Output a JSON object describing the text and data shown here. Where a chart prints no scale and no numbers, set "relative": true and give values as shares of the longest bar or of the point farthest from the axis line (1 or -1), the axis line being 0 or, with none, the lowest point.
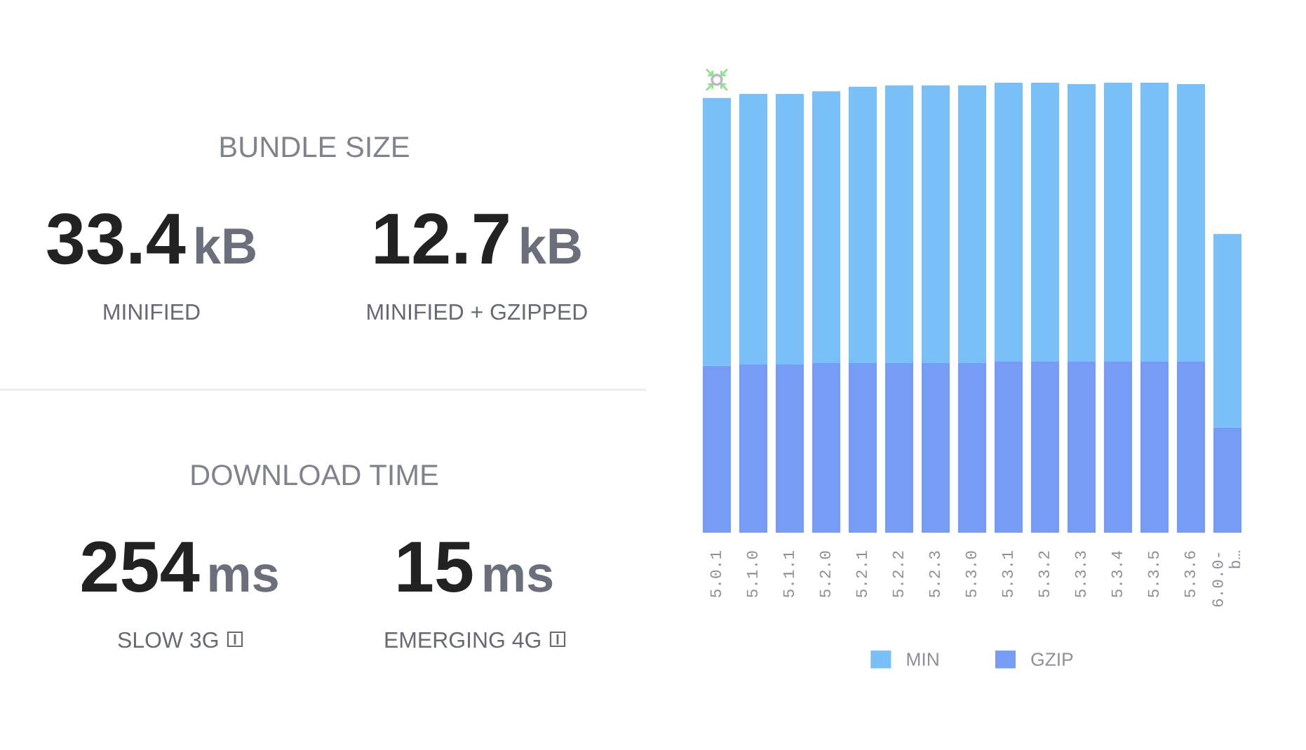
{
  "chart_data": [
    {
      "type": "other",
      "title": "BUNDLE SIZE",
      "annotations": [
        "33.4",
        "kB",
        "MINIFIED",
        "12.7",
        "kB",
        "MINIFIED + GZIPPED"
      ]
    },
    {
      "type": "other",
      "title": "DOWNLOAD TIME",
      "annotations": [
        "254",
        "ms",
        "SLOW 3G",
        "15",
        "ms",
        "EMERGING 4G"
      ]
    },
    {
      "type": "bar",
      "stacked": true,
      "relative": true,
      "legend": "bottom",
      "categories": [
        "5.0.1",
        "5.1.0",
        "5.1.1",
        "5.2.0",
        "5.2.1",
        "5.2.2",
        "5.2.3",
        "5.3.0",
        "5.3.1",
        "5.3.2",
        "5.3.3",
        "5.3.4",
        "5.3.5",
        "5.3.6",
        "6.0.0-b…"
      ],
      "series": [
        {
          "name": "GZIP",
          "color": "#769cf5",
          "values": [
            0.371,
            0.374,
            0.374,
            0.377,
            0.377,
            0.377,
            0.377,
            0.377,
            0.38,
            0.38,
            0.38,
            0.38,
            0.38,
            0.38,
            0.234
          ]
        },
        {
          "name": "MIN",
          "color": "#7ac0f8",
          "values": [
            0.595,
            0.601,
            0.601,
            0.604,
            0.614,
            0.617,
            0.617,
            0.617,
            0.62,
            0.62,
            0.617,
            0.62,
            0.62,
            0.617,
            0.43
          ]
        }
      ]
    }
  ]
}
